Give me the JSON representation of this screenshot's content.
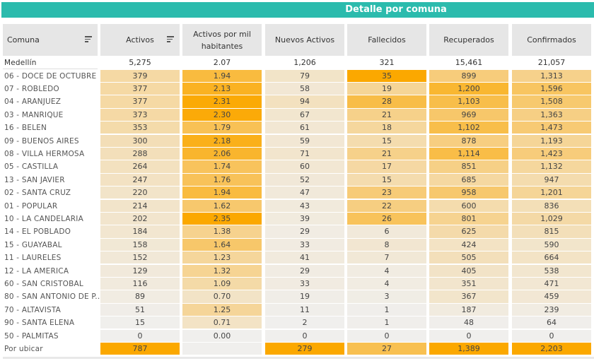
{
  "title": "Detalle por comuna",
  "columns": [
    {
      "label": "Comuna",
      "sortable": true
    },
    {
      "label": "Activos",
      "sortable": true
    },
    {
      "label": "Activos por mil habitantes",
      "sortable": false
    },
    {
      "label": "Nuevos Activos",
      "sortable": false
    },
    {
      "label": "Fallecidos",
      "sortable": false
    },
    {
      "label": "Recuperados",
      "sortable": false
    },
    {
      "label": "Confirmados",
      "sortable": false
    }
  ],
  "total": {
    "name": "Medellín",
    "values": [
      "5,275",
      "2.07",
      "1,206",
      "321",
      "15,461",
      "21,057"
    ]
  },
  "rows": [
    {
      "name": "06 - DOCE DE OCTUBRE",
      "values": [
        "379",
        "1.94",
        "79",
        "35",
        "899",
        "1,313"
      ]
    },
    {
      "name": "07 - ROBLEDO",
      "values": [
        "377",
        "2.13",
        "58",
        "19",
        "1,200",
        "1,596"
      ]
    },
    {
      "name": "04 - ARANJUEZ",
      "values": [
        "377",
        "2.31",
        "94",
        "28",
        "1,103",
        "1,508"
      ]
    },
    {
      "name": "03 - MANRIQUE",
      "values": [
        "373",
        "2.30",
        "67",
        "21",
        "969",
        "1,363"
      ]
    },
    {
      "name": "16 - BELEN",
      "values": [
        "353",
        "1.79",
        "61",
        "18",
        "1,102",
        "1,473"
      ]
    },
    {
      "name": "09 - BUENOS AIRES",
      "values": [
        "300",
        "2.18",
        "59",
        "15",
        "878",
        "1,193"
      ]
    },
    {
      "name": "08 - VILLA HERMOSA",
      "values": [
        "288",
        "2.06",
        "71",
        "21",
        "1,114",
        "1,423"
      ]
    },
    {
      "name": "05 - CASTILLA",
      "values": [
        "264",
        "1.74",
        "60",
        "17",
        "851",
        "1,132"
      ]
    },
    {
      "name": "13 - SAN JAVIER",
      "values": [
        "247",
        "1.76",
        "52",
        "15",
        "685",
        "947"
      ]
    },
    {
      "name": "02 - SANTA CRUZ",
      "values": [
        "220",
        "1.94",
        "47",
        "23",
        "958",
        "1,201"
      ]
    },
    {
      "name": "01 - POPULAR",
      "values": [
        "214",
        "1.62",
        "43",
        "22",
        "600",
        "836"
      ]
    },
    {
      "name": "10 - LA CANDELARIA",
      "values": [
        "202",
        "2.35",
        "39",
        "26",
        "801",
        "1,029"
      ]
    },
    {
      "name": "14 - EL POBLADO",
      "values": [
        "184",
        "1.38",
        "29",
        "6",
        "625",
        "815"
      ]
    },
    {
      "name": "15 - GUAYABAL",
      "values": [
        "158",
        "1.64",
        "33",
        "8",
        "424",
        "590"
      ]
    },
    {
      "name": "11 - LAURELES",
      "values": [
        "152",
        "1.23",
        "41",
        "7",
        "505",
        "664"
      ]
    },
    {
      "name": "12 - LA AMERICA",
      "values": [
        "129",
        "1.32",
        "29",
        "4",
        "405",
        "538"
      ]
    },
    {
      "name": "60 - SAN CRISTOBAL",
      "values": [
        "116",
        "1.09",
        "33",
        "4",
        "351",
        "471"
      ]
    },
    {
      "name": "80 - SAN ANTONIO DE P..",
      "values": [
        "89",
        "0.70",
        "19",
        "3",
        "367",
        "459"
      ]
    },
    {
      "name": "70 - ALTAVISTA",
      "values": [
        "51",
        "1.25",
        "11",
        "1",
        "187",
        "239"
      ]
    },
    {
      "name": "90 - SANTA ELENA",
      "values": [
        "15",
        "0.71",
        "2",
        "1",
        "48",
        "64"
      ]
    },
    {
      "name": "50 - PALMITAS",
      "values": [
        "0",
        "0.00",
        "0",
        "0",
        "0",
        "0"
      ]
    },
    {
      "name": "Por ubicar",
      "values": [
        "787",
        "",
        "279",
        "27",
        "1,389",
        "2,203"
      ]
    }
  ],
  "colors": {
    "header_bg": "#2bbbad",
    "low": "#f0efed",
    "mid": "#f6d28e",
    "high": "#fba800"
  }
}
